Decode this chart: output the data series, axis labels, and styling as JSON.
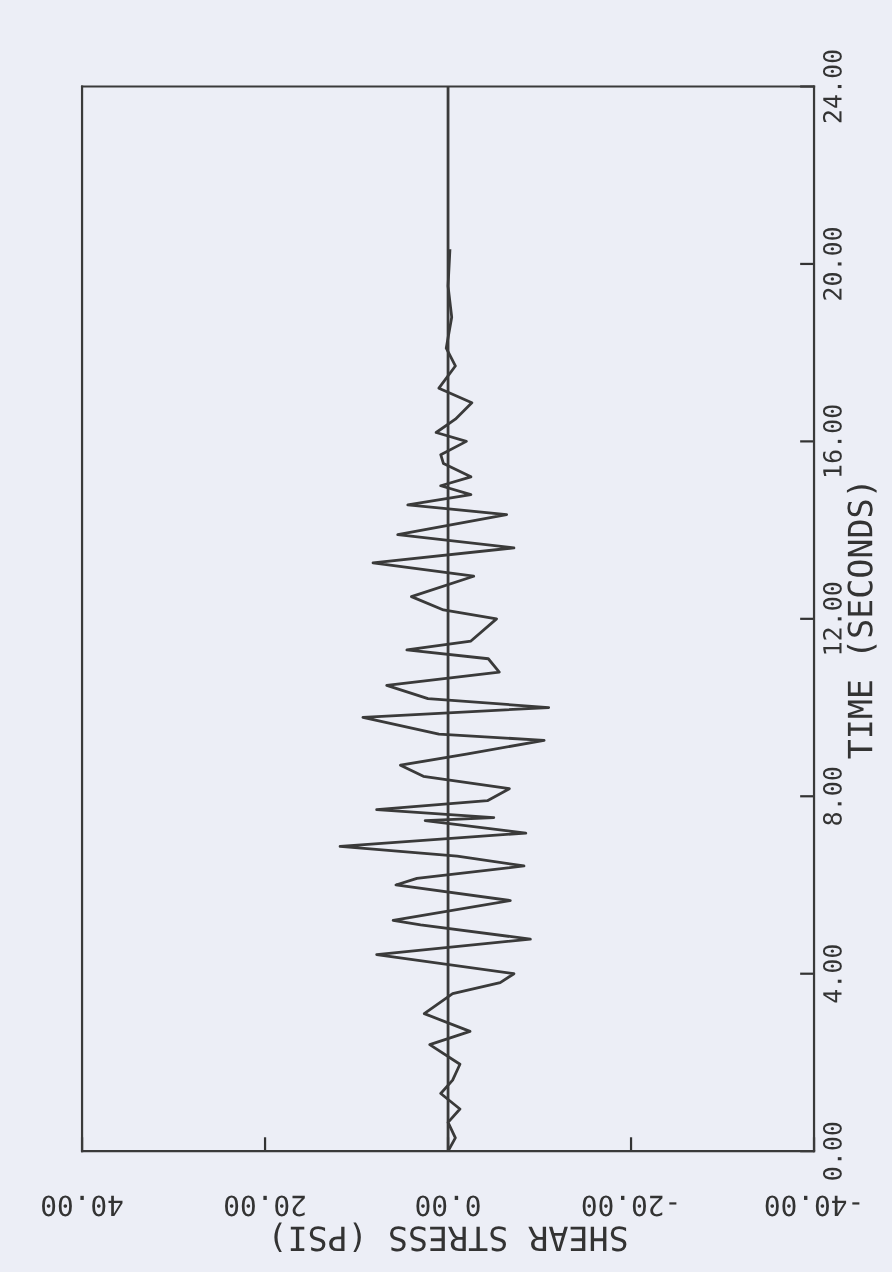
{
  "chart_data": {
    "type": "line",
    "xlabel": "SHEAR STRESS (PSI)",
    "ylabel": "TIME (SECONDS)",
    "xlim": [
      40,
      -40
    ],
    "ylim": [
      0,
      24
    ],
    "xticks": [
      {
        "value": 40,
        "label": "40.00"
      },
      {
        "value": 20,
        "label": "20.00"
      },
      {
        "value": 0,
        "label": "0.00"
      },
      {
        "value": -20,
        "label": "-20.00"
      },
      {
        "value": -40,
        "label": "-40.00"
      }
    ],
    "yticks": [
      {
        "value": 0,
        "label": "0.00"
      },
      {
        "value": 4,
        "label": "4.00"
      },
      {
        "value": 8,
        "label": "8.00"
      },
      {
        "value": 12,
        "label": "12.00"
      },
      {
        "value": 16,
        "label": "16.00"
      },
      {
        "value": 20,
        "label": "20.00"
      },
      {
        "value": 24,
        "label": "24.00"
      }
    ],
    "grid": false,
    "legend": false,
    "marker": "none",
    "line_style": "solid",
    "ref_lines": [
      {
        "axis": "x",
        "value": 0,
        "color": "#3a3a3a"
      }
    ],
    "series": [
      {
        "color": "#3a3a3a",
        "values": [
          0,
          0.3,
          0.65,
          0.95,
          1.3,
          1.6,
          1.96,
          2.4,
          2.7,
          3.1,
          3.55,
          3.8,
          4.0,
          4.43,
          4.78,
          5.1,
          5.2,
          5.65,
          6.0,
          6.15,
          6.43,
          6.65,
          6.87,
          7.17,
          7.45,
          7.52,
          7.7,
          7.9,
          8.17,
          8.45,
          8.7,
          8.95,
          9.26,
          9.4,
          9.78,
          10.0,
          10.2,
          10.5,
          10.8,
          11.1,
          11.3,
          11.5,
          12.0,
          12.2,
          12.5,
          12.96,
          13.26,
          13.6,
          13.9,
          14.35,
          14.57,
          14.8,
          15.0,
          15.2,
          15.5,
          15.7,
          16.0,
          16.2,
          16.5,
          16.87,
          17.2,
          17.7,
          18.1,
          18.8,
          19.5,
          20.3
        ],
        "x": [
          0,
          -0.8,
          0,
          -1.3,
          0.8,
          -0.5,
          -1.3,
          2,
          -2.4,
          2.6,
          -0.5,
          -5.7,
          -7.2,
          7.8,
          -9,
          3,
          6,
          -6.8,
          5.7,
          3.4,
          -8.3,
          -1,
          11.8,
          -8.5,
          2.5,
          -5,
          7.8,
          -4.3,
          -6.7,
          2.7,
          5.2,
          -2,
          -10.5,
          1,
          9.3,
          -11,
          2.2,
          6.7,
          -5.6,
          -4.4,
          4.5,
          -2.5,
          -5.3,
          0.5,
          4,
          -2.8,
          8.2,
          -7.2,
          5.5,
          -6.4,
          4.4,
          -2.5,
          0.8,
          -2.5,
          0.5,
          0.8,
          -2,
          1.3,
          -0.8,
          -2.6,
          1,
          -0.8,
          0.2,
          -0.4,
          0,
          -0.2
        ]
      }
    ]
  }
}
